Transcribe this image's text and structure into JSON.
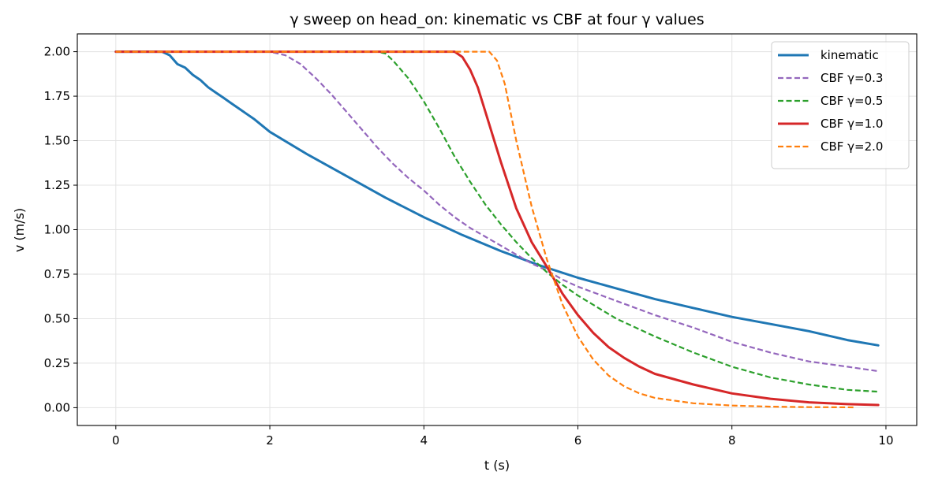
{
  "chart_data": {
    "type": "line",
    "title": "γ sweep on head_on: kinematic vs CBF at four γ values",
    "xlabel": "t (s)",
    "ylabel": "v (m/s)",
    "xlim": [
      -0.5,
      10.4
    ],
    "ylim": [
      -0.1,
      2.1
    ],
    "xticks": [
      0,
      2,
      4,
      6,
      8,
      10
    ],
    "yticks": [
      0.0,
      0.25,
      0.5,
      0.75,
      1.0,
      1.25,
      1.5,
      1.75,
      2.0
    ],
    "xtick_labels": [
      "0",
      "2",
      "4",
      "6",
      "8",
      "10"
    ],
    "ytick_labels": [
      "0.00",
      "0.25",
      "0.50",
      "0.75",
      "1.00",
      "1.25",
      "1.50",
      "1.75",
      "2.00"
    ],
    "grid": true,
    "legend_position": "top-right",
    "series": [
      {
        "name": "kinematic",
        "color": "#1f77b4",
        "style": "solid",
        "x": [
          0,
          0.6,
          0.7,
          0.8,
          0.9,
          1.0,
          1.1,
          1.2,
          1.3,
          1.4,
          1.5,
          1.6,
          1.7,
          1.8,
          2.0,
          2.5,
          3.0,
          3.5,
          4.0,
          4.5,
          5.0,
          5.5,
          6.0,
          6.5,
          7.0,
          7.5,
          8.0,
          8.5,
          9.0,
          9.5,
          9.9
        ],
        "y": [
          2.0,
          2.0,
          1.98,
          1.93,
          1.91,
          1.87,
          1.84,
          1.8,
          1.77,
          1.74,
          1.71,
          1.68,
          1.65,
          1.62,
          1.55,
          1.42,
          1.3,
          1.18,
          1.07,
          0.97,
          0.88,
          0.8,
          0.73,
          0.67,
          0.61,
          0.56,
          0.51,
          0.47,
          0.43,
          0.38,
          0.35
        ]
      },
      {
        "name": "CBF γ=0.3",
        "color": "#9467bd",
        "style": "dashed",
        "x": [
          0,
          2.0,
          2.2,
          2.4,
          2.6,
          2.8,
          3.0,
          3.2,
          3.4,
          3.6,
          3.8,
          4.0,
          4.2,
          4.4,
          4.6,
          4.8,
          5.0,
          5.2,
          5.4,
          5.6,
          5.8,
          6.0,
          6.5,
          7.0,
          7.5,
          8.0,
          8.5,
          9.0,
          9.5,
          9.9
        ],
        "y": [
          2.0,
          2.0,
          1.98,
          1.93,
          1.85,
          1.76,
          1.66,
          1.56,
          1.46,
          1.37,
          1.29,
          1.22,
          1.14,
          1.07,
          1.01,
          0.96,
          0.91,
          0.86,
          0.81,
          0.77,
          0.72,
          0.68,
          0.6,
          0.52,
          0.45,
          0.37,
          0.31,
          0.26,
          0.23,
          0.205
        ]
      },
      {
        "name": "CBF γ=0.5",
        "color": "#2ca02c",
        "style": "dashed",
        "x": [
          0,
          3.4,
          3.5,
          3.6,
          3.8,
          4.0,
          4.2,
          4.4,
          4.6,
          4.8,
          5.0,
          5.2,
          5.4,
          5.6,
          5.8,
          6.0,
          6.5,
          7.0,
          7.5,
          8.0,
          8.5,
          9.0,
          9.5,
          9.9
        ],
        "y": [
          2.0,
          2.0,
          1.99,
          1.95,
          1.85,
          1.72,
          1.57,
          1.41,
          1.27,
          1.14,
          1.03,
          0.93,
          0.84,
          0.76,
          0.69,
          0.63,
          0.5,
          0.4,
          0.31,
          0.23,
          0.17,
          0.13,
          0.1,
          0.09
        ]
      },
      {
        "name": "CBF γ=1.0",
        "color": "#d62728",
        "style": "solid",
        "x": [
          0,
          4.4,
          4.5,
          4.6,
          4.7,
          4.8,
          5.0,
          5.2,
          5.4,
          5.6,
          5.8,
          6.0,
          6.2,
          6.4,
          6.6,
          6.8,
          7.0,
          7.5,
          8.0,
          8.5,
          9.0,
          9.5,
          9.9
        ],
        "y": [
          2.0,
          2.0,
          1.97,
          1.9,
          1.8,
          1.66,
          1.38,
          1.12,
          0.93,
          0.79,
          0.64,
          0.52,
          0.42,
          0.34,
          0.28,
          0.23,
          0.19,
          0.13,
          0.08,
          0.05,
          0.03,
          0.02,
          0.015
        ]
      },
      {
        "name": "CBF γ=2.0",
        "color": "#ff7f0e",
        "style": "dashed",
        "x": [
          0,
          4.85,
          4.95,
          5.05,
          5.2,
          5.4,
          5.6,
          5.8,
          6.0,
          6.2,
          6.4,
          6.6,
          6.8,
          7.0,
          7.5,
          8.0,
          8.5,
          9.0,
          9.6
        ],
        "y": [
          2.0,
          2.0,
          1.95,
          1.82,
          1.5,
          1.13,
          0.83,
          0.58,
          0.4,
          0.27,
          0.18,
          0.12,
          0.08,
          0.055,
          0.025,
          0.012,
          0.006,
          0.003,
          0.002
        ]
      }
    ]
  }
}
